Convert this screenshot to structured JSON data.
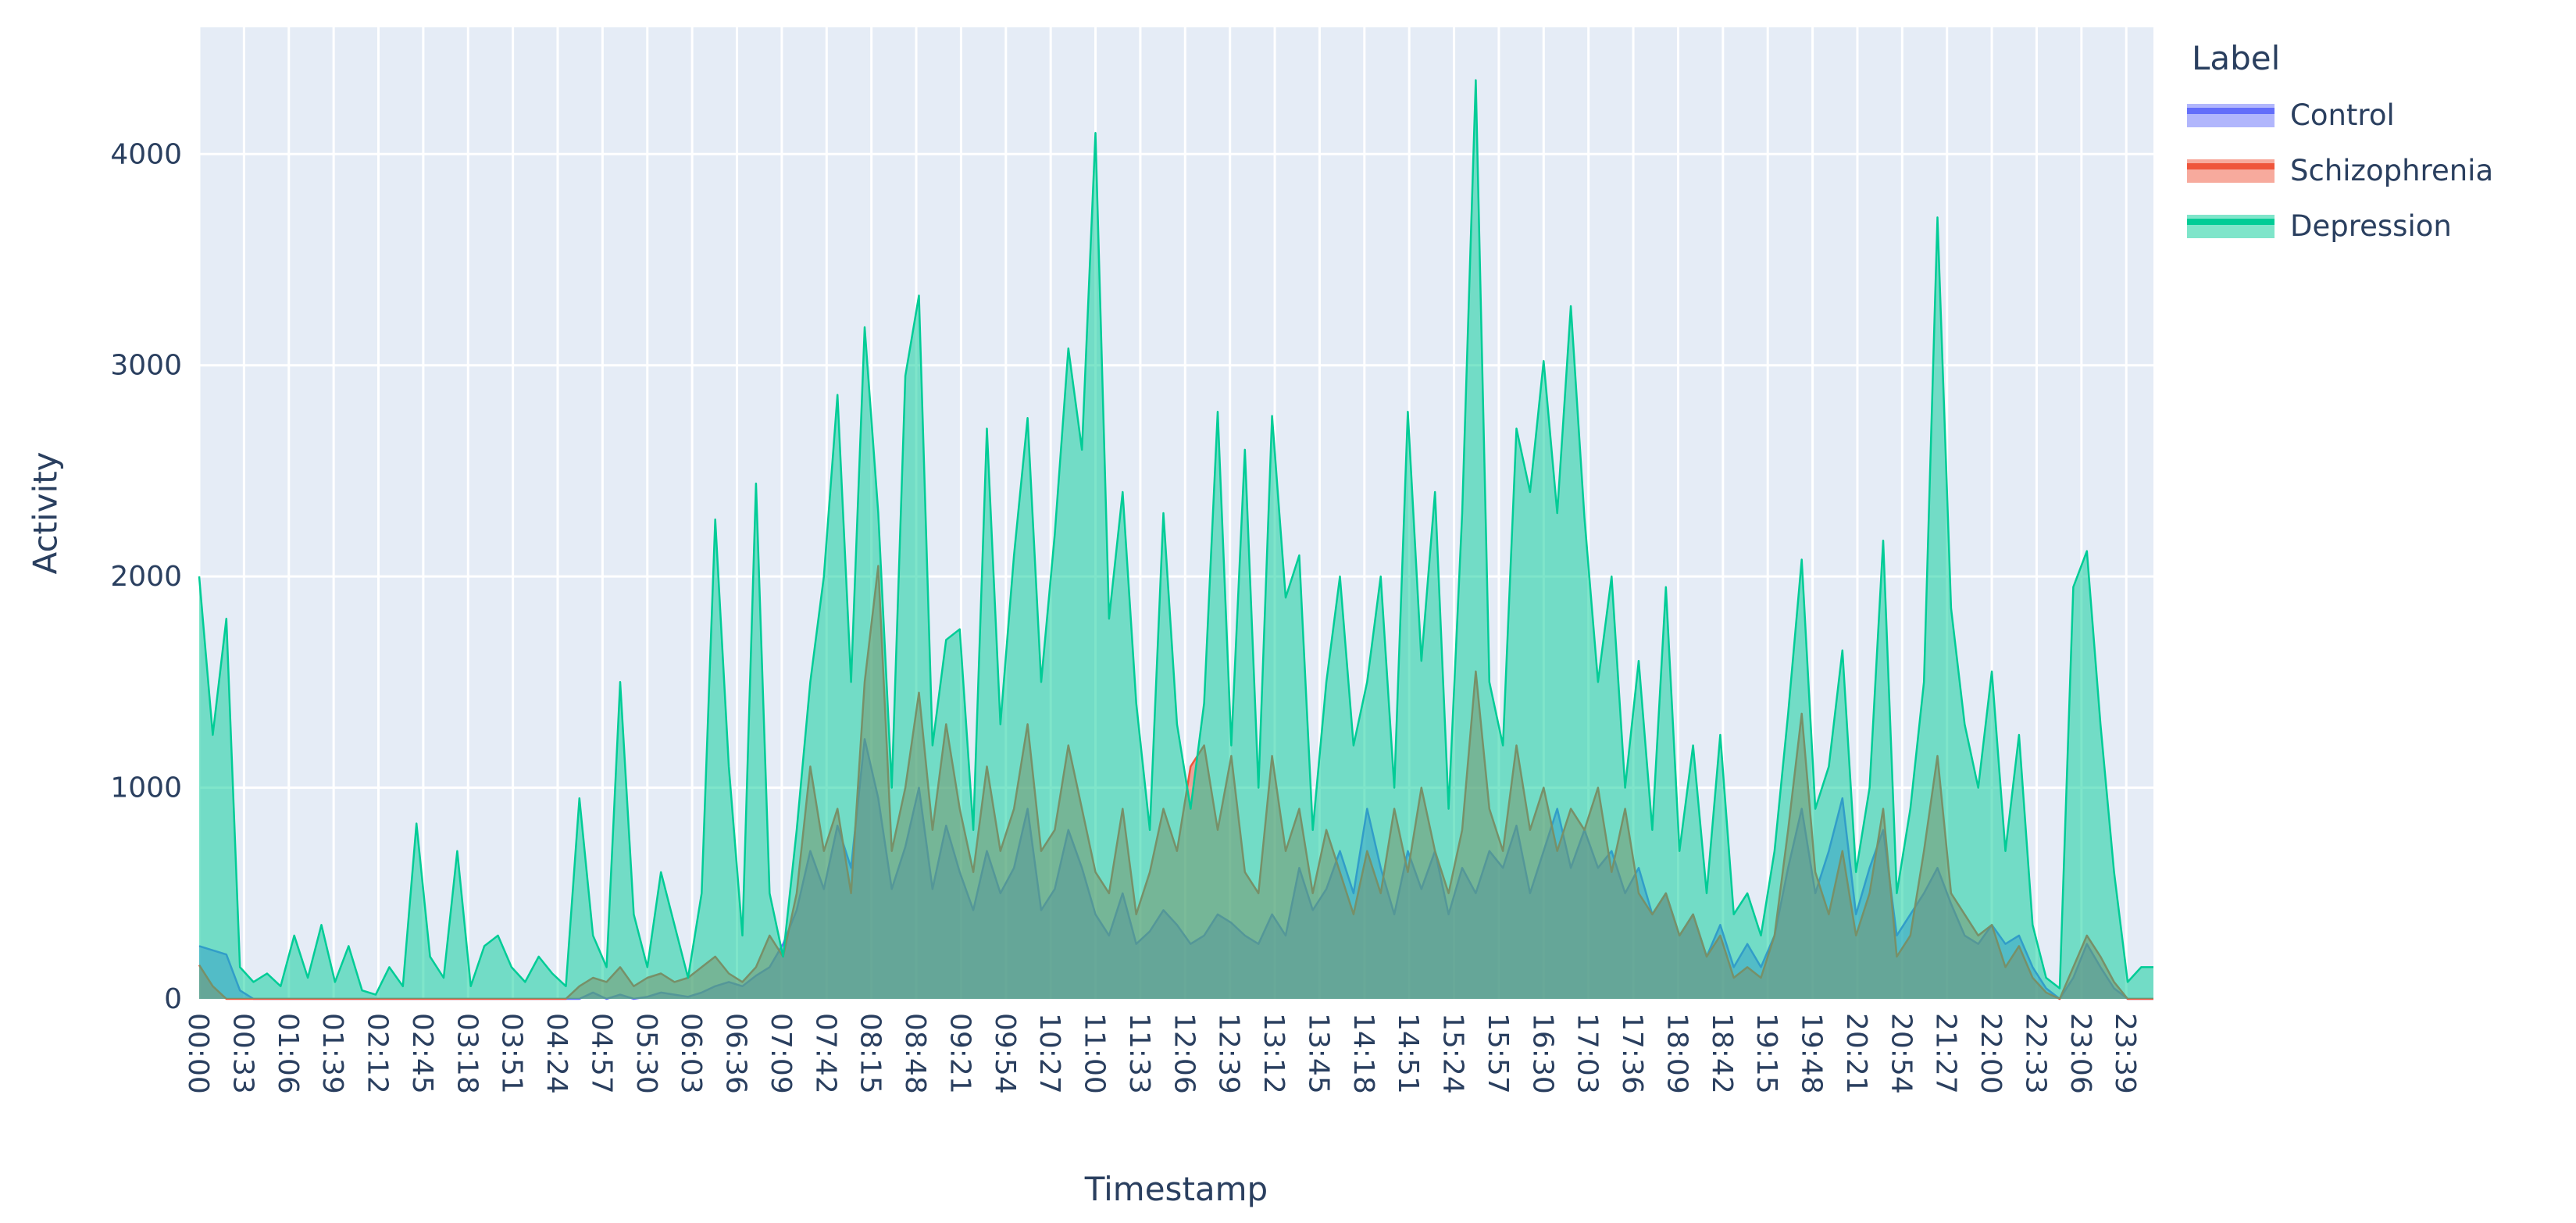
{
  "figure": {
    "plot_bg": "#E5ECF6",
    "grid_color": "#FFFFFF",
    "text_color": "#2a3f5f",
    "y_axis": {
      "title": "Activity",
      "ticks": [
        0,
        1000,
        2000,
        3000,
        4000
      ],
      "max": 4600
    },
    "x_axis": {
      "title": "Timestamp",
      "tick_step_minutes": 33,
      "range_minutes": [
        0,
        1439
      ],
      "tick_labels": [
        "00:00",
        "00:33",
        "01:06",
        "01:39",
        "02:12",
        "02:45",
        "03:18",
        "03:51",
        "04:24",
        "04:57",
        "05:30",
        "06:03",
        "06:36",
        "07:09",
        "07:42",
        "08:15",
        "08:48",
        "09:21",
        "09:54",
        "10:27",
        "11:00",
        "11:33",
        "12:06",
        "12:39",
        "13:12",
        "13:45",
        "14:18",
        "14:51",
        "15:24",
        "15:57",
        "16:30",
        "17:03",
        "17:36",
        "18:09",
        "18:42",
        "19:15",
        "19:48",
        "20:21",
        "20:54",
        "21:27",
        "22:00",
        "22:33",
        "23:06",
        "23:39"
      ]
    },
    "legend": {
      "title": "Label",
      "items": [
        {
          "label": "Control",
          "color": "#636EFA"
        },
        {
          "label": "Schizophrenia",
          "color": "#EF553B"
        },
        {
          "label": "Depression",
          "color": "#00CC96"
        }
      ]
    }
  },
  "chart_data": {
    "type": "area",
    "title": "",
    "xlabel": "Timestamp",
    "ylabel": "Activity",
    "ylim": [
      0,
      4600
    ],
    "x_step_minutes": 10,
    "x_start_minute": 0,
    "fill_opacity": 0.5,
    "legend_position": "right",
    "grid": true,
    "series": [
      {
        "name": "Control",
        "color": "#636EFA",
        "values": [
          250,
          230,
          210,
          40,
          0,
          0,
          0,
          0,
          0,
          0,
          0,
          0,
          0,
          0,
          0,
          0,
          0,
          0,
          0,
          0,
          0,
          0,
          0,
          0,
          0,
          0,
          0,
          0,
          0,
          30,
          0,
          20,
          0,
          10,
          30,
          20,
          10,
          30,
          60,
          80,
          60,
          110,
          150,
          260,
          420,
          700,
          520,
          820,
          620,
          1230,
          950,
          520,
          720,
          1000,
          520,
          820,
          600,
          420,
          700,
          500,
          620,
          900,
          420,
          520,
          800,
          620,
          400,
          300,
          500,
          260,
          320,
          420,
          350,
          260,
          300,
          400,
          360,
          300,
          260,
          400,
          300,
          620,
          420,
          520,
          700,
          500,
          900,
          620,
          400,
          700,
          520,
          700,
          400,
          620,
          500,
          700,
          620,
          820,
          500,
          700,
          900,
          620,
          800,
          620,
          700,
          500,
          620,
          400,
          500,
          300,
          400,
          200,
          350,
          150,
          260,
          150,
          300,
          620,
          900,
          500,
          700,
          950,
          400,
          620,
          800,
          300,
          400,
          500,
          620,
          450,
          300,
          260,
          350,
          260,
          300,
          150,
          50,
          0,
          100,
          260,
          150,
          50,
          0,
          0
        ]
      },
      {
        "name": "Schizophrenia",
        "color": "#EF553B",
        "values": [
          160,
          60,
          0,
          0,
          0,
          0,
          0,
          0,
          0,
          0,
          0,
          0,
          0,
          0,
          0,
          0,
          0,
          0,
          0,
          0,
          0,
          0,
          0,
          0,
          0,
          0,
          0,
          0,
          60,
          100,
          80,
          150,
          60,
          100,
          120,
          80,
          100,
          150,
          200,
          120,
          80,
          150,
          300,
          200,
          500,
          1100,
          700,
          900,
          500,
          1500,
          2050,
          700,
          1000,
          1450,
          800,
          1300,
          900,
          600,
          1100,
          700,
          900,
          1300,
          700,
          800,
          1200,
          900,
          600,
          500,
          900,
          400,
          600,
          900,
          700,
          1100,
          1200,
          800,
          1150,
          600,
          500,
          1150,
          700,
          900,
          500,
          800,
          600,
          400,
          700,
          500,
          900,
          600,
          1000,
          700,
          500,
          800,
          1550,
          900,
          700,
          1200,
          800,
          1000,
          700,
          900,
          800,
          1000,
          600,
          900,
          500,
          400,
          500,
          300,
          400,
          200,
          300,
          100,
          150,
          100,
          300,
          800,
          1350,
          600,
          400,
          700,
          300,
          500,
          900,
          200,
          300,
          700,
          1150,
          500,
          400,
          300,
          350,
          150,
          250,
          100,
          30,
          0,
          150,
          300,
          200,
          80,
          0,
          0
        ]
      },
      {
        "name": "Depression",
        "color": "#00CC96",
        "values": [
          2000,
          1250,
          1800,
          150,
          80,
          120,
          60,
          300,
          100,
          350,
          80,
          250,
          40,
          20,
          150,
          60,
          830,
          200,
          100,
          700,
          60,
          250,
          300,
          150,
          80,
          200,
          120,
          60,
          950,
          300,
          150,
          1500,
          400,
          150,
          600,
          350,
          100,
          500,
          2270,
          1100,
          300,
          2440,
          500,
          200,
          800,
          1500,
          2000,
          2860,
          1500,
          3180,
          2300,
          1000,
          2950,
          3330,
          1200,
          1700,
          1750,
          800,
          2700,
          1300,
          2100,
          2750,
          1500,
          2200,
          3080,
          2600,
          4100,
          1800,
          2400,
          1400,
          800,
          2300,
          1300,
          900,
          1400,
          2780,
          1200,
          2600,
          1000,
          2760,
          1900,
          2100,
          800,
          1500,
          2000,
          1200,
          1500,
          2000,
          1000,
          2780,
          1600,
          2400,
          900,
          2300,
          4350,
          1500,
          1200,
          2700,
          2400,
          3020,
          2300,
          3280,
          2280,
          1500,
          2000,
          1000,
          1600,
          800,
          1950,
          700,
          1200,
          500,
          1250,
          400,
          500,
          300,
          700,
          1350,
          2080,
          900,
          1100,
          1650,
          600,
          1000,
          2170,
          500,
          900,
          1500,
          3700,
          1850,
          1300,
          1000,
          1550,
          700,
          1250,
          350,
          100,
          50,
          1950,
          2120,
          1300,
          600,
          80,
          150
        ]
      }
    ]
  }
}
